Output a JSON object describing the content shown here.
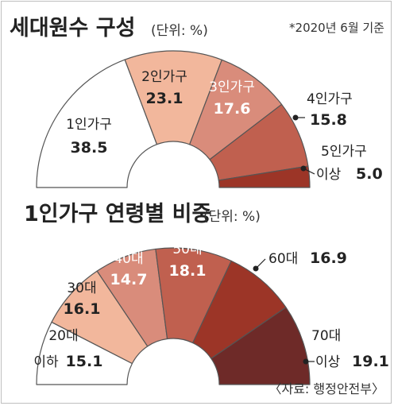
{
  "chart_data": [
    {
      "type": "pie",
      "title": "세대원수 구성",
      "unit": "(단위: %)",
      "note": "*2020년 6월 기준",
      "slices": [
        {
          "name": "1인가구",
          "value": 38.5,
          "color": "#ffffff"
        },
        {
          "name": "2인가구",
          "value": 23.1,
          "color": "#f2b79c"
        },
        {
          "name": "3인가구",
          "value": 17.6,
          "color": "#d98c7b"
        },
        {
          "name": "4인가구",
          "value": 15.8,
          "color": "#c0604f"
        },
        {
          "name": "5인가구 이상",
          "value": 5.0,
          "color": "#9c3527"
        }
      ]
    },
    {
      "type": "pie",
      "title": "1인가구 연령별 비중",
      "unit": "(단위: %)",
      "slices": [
        {
          "name": "20대 이하",
          "value": 15.1,
          "color": "#ffffff"
        },
        {
          "name": "30대",
          "value": 16.1,
          "color": "#f2b79c"
        },
        {
          "name": "40대",
          "value": 14.7,
          "color": "#d98c7b"
        },
        {
          "name": "50대",
          "value": 18.1,
          "color": "#c0604f"
        },
        {
          "name": "60대",
          "value": 16.9,
          "color": "#9c3527"
        },
        {
          "name": "70대 이상",
          "value": 19.1,
          "color": "#6e2a28"
        }
      ]
    }
  ],
  "labels": {
    "top": {
      "s1_name": "1인가구",
      "s1_val": "38.5",
      "s2_name": "2인가구",
      "s2_val": "23.1",
      "s3_name": "3인가구",
      "s3_val": "17.6",
      "s4_name": "4인가구",
      "s4_val": "15.8",
      "s5_name_1": "5인가구",
      "s5_name_2": "이상",
      "s5_val": "5.0"
    },
    "bottom": {
      "s1_name_1": "20대",
      "s1_name_2": "이하",
      "s1_val": "15.1",
      "s2_name": "30대",
      "s2_val": "16.1",
      "s3_name": "40대",
      "s3_val": "14.7",
      "s4_name": "50대",
      "s4_val": "18.1",
      "s5_name": "60대",
      "s5_val": "16.9",
      "s6_name_1": "70대",
      "s6_name_2": "이상",
      "s6_val": "19.1"
    }
  },
  "source": "〈자료: 행정안전부〉"
}
